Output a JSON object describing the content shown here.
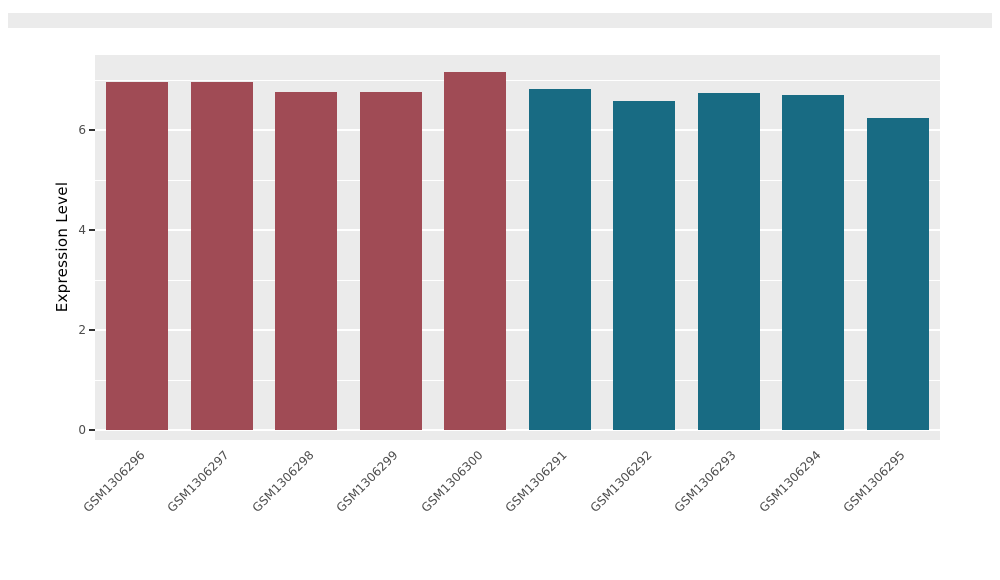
{
  "figure": {
    "background": "#ffffff",
    "panel_background": "#ebebeb",
    "grid_color": "#ffffff",
    "axis_text_color": "#4d4d4d"
  },
  "chart_data": {
    "type": "bar",
    "title": "",
    "xlabel": "",
    "ylabel": "Expression Level",
    "categories": [
      "GSM1306296",
      "GSM1306297",
      "GSM1306298",
      "GSM1306299",
      "GSM1306300",
      "GSM1306291",
      "GSM1306292",
      "GSM1306293",
      "GSM1306294",
      "GSM1306295"
    ],
    "values": [
      6.96,
      6.96,
      6.77,
      6.77,
      7.16,
      6.82,
      6.58,
      6.74,
      6.7,
      6.24
    ],
    "bar_colors": [
      "#A04B55",
      "#A04B55",
      "#A04B55",
      "#A04B55",
      "#A04B55",
      "#186B83",
      "#186B83",
      "#186B83",
      "#186B83",
      "#186B83"
    ],
    "group_colors": {
      "group1": "#A04B55",
      "group2": "#186B83"
    },
    "yticks": [
      0,
      2,
      4,
      6
    ],
    "minor_ticks": [
      1,
      3,
      5,
      7
    ],
    "ylim": [
      0,
      7.5
    ],
    "grid": true,
    "legend_position": "none",
    "x_tick_rotation_deg": 45
  }
}
